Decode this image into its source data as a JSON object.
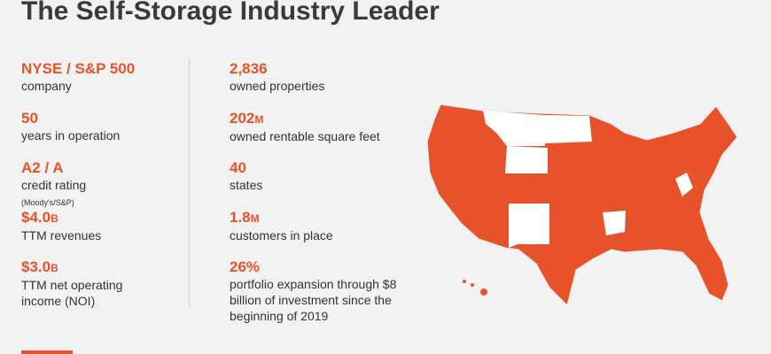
{
  "header": {
    "title": "The Self-Storage Industry Leader"
  },
  "left_stats": [
    {
      "value": "NYSE / S&P 500",
      "label": "company"
    },
    {
      "value": "50",
      "label": "years in operation"
    },
    {
      "value": "A2 / A",
      "label": "credit rating",
      "note": "(Moody's/S&P)"
    },
    {
      "value": "$4.0",
      "unit": "B",
      "label": "TTM revenues"
    },
    {
      "value": "$3.0",
      "unit": "B",
      "label": "TTM net operating income (NOI)"
    }
  ],
  "right_stats": [
    {
      "value": "2,836",
      "label": "owned properties"
    },
    {
      "value": "202",
      "unit": "M",
      "label": "owned rentable square feet"
    },
    {
      "value": "40",
      "label": "states"
    },
    {
      "value": "1.8",
      "unit": "M",
      "label": "customers in place"
    },
    {
      "value": "26%",
      "label": "portfolio expansion through $8 billion of investment since the beginning of 2019"
    }
  ]
}
